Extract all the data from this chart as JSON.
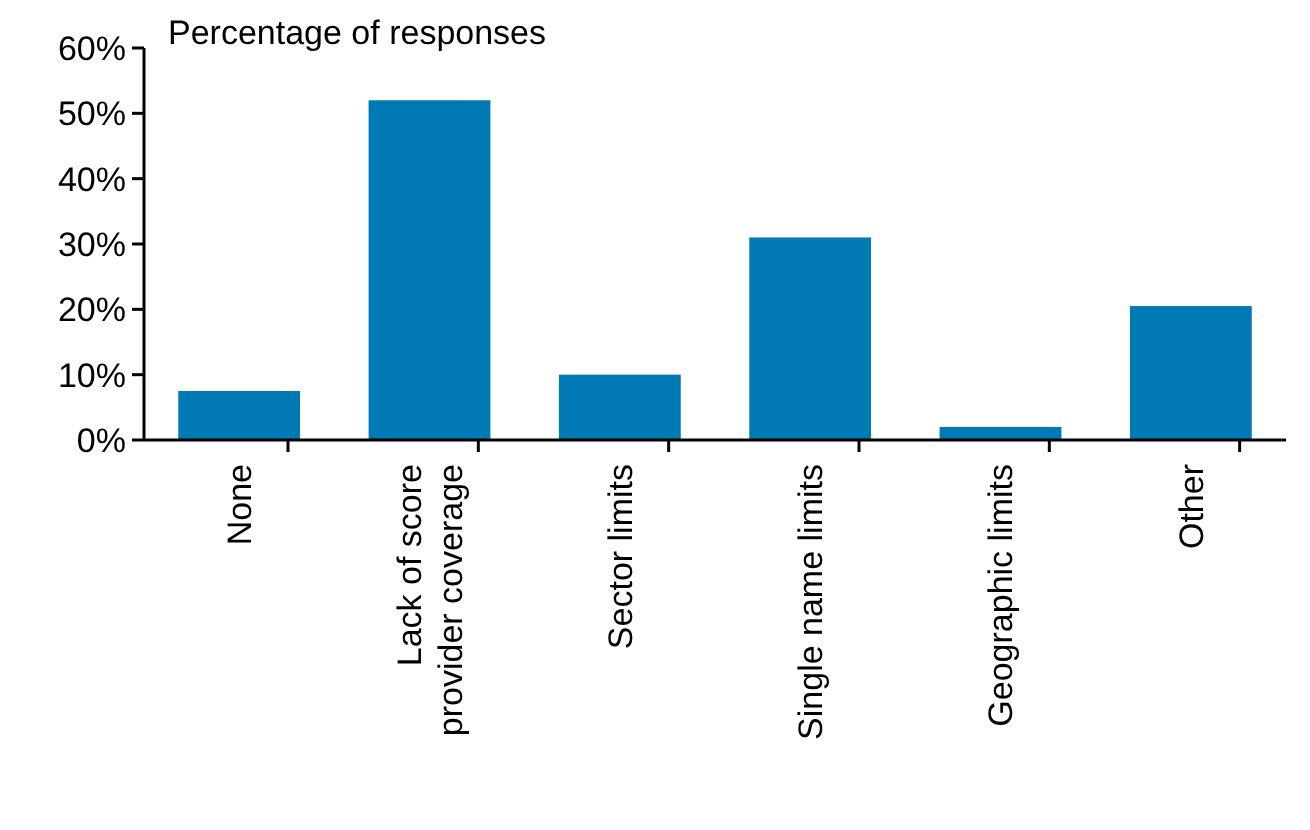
{
  "chart_data": {
    "type": "bar",
    "ylabel": "Percentage of responses",
    "categories": [
      "None",
      "Lack of score provider coverage",
      "Sector limits",
      "Single name limits",
      "Geographic limits",
      "Other"
    ],
    "values": [
      7.5,
      52,
      10,
      31,
      2,
      20.5
    ],
    "color": "#0079b4",
    "ylim": [
      0,
      60
    ],
    "yticks": [
      {
        "value": 0,
        "label": "0%"
      },
      {
        "value": 10,
        "label": "10%"
      },
      {
        "value": 20,
        "label": "20%"
      },
      {
        "value": 30,
        "label": "30%"
      },
      {
        "value": 40,
        "label": "40%"
      },
      {
        "value": 50,
        "label": "50%"
      },
      {
        "value": 60,
        "label": "60%"
      }
    ],
    "grid": false
  }
}
